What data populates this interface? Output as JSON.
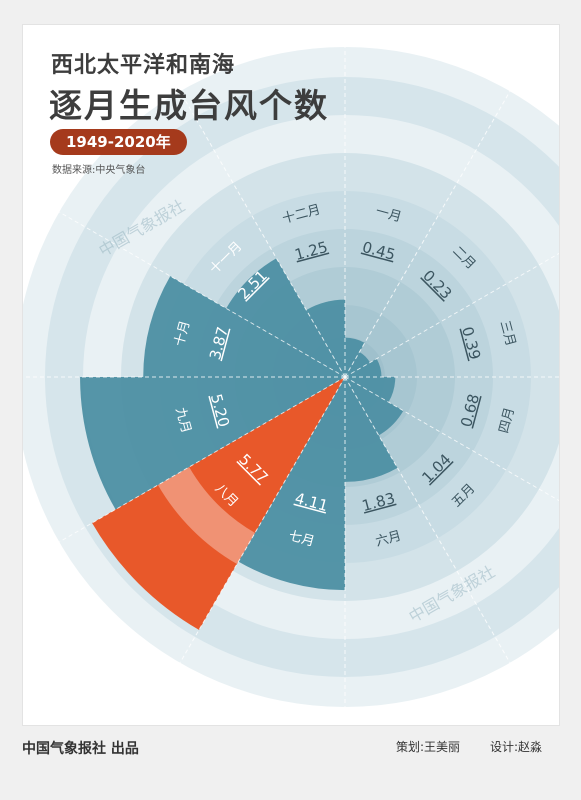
{
  "header": {
    "title_line1": "西北太平洋和南海",
    "title_line2": "逐月生成台风个数",
    "year_range": "1949-2020年",
    "source": "数据来源:中央气象台"
  },
  "footer": {
    "publisher": "中国气象报社 出品",
    "planner": "策划:王美丽",
    "designer": "设计:赵淼"
  },
  "watermark": "中国气象报社",
  "colors": {
    "bar": "#4d8fa3",
    "bar_highlight": "#e8582a",
    "rings_light": "#dde9ee",
    "rings_mid": "#c3d8e0",
    "title": "#3d3d3d",
    "badge": "#a53a1c"
  },
  "chart_data": {
    "type": "polar-bar",
    "title": "西北太平洋和南海逐月生成台风个数",
    "categories": [
      "一月",
      "二月",
      "三月",
      "四月",
      "五月",
      "六月",
      "七月",
      "八月",
      "九月",
      "十月",
      "十一月",
      "十二月"
    ],
    "values": [
      0.45,
      0.23,
      0.39,
      0.68,
      1.04,
      1.83,
      4.11,
      5.77,
      5.2,
      3.87,
      2.51,
      1.25
    ],
    "value_labels": [
      "0.45",
      "0.23",
      "0.39",
      "0.68",
      "1.04",
      "1.83",
      "4.11",
      "5.77",
      "5.20",
      "3.87",
      "2.51",
      "1.25"
    ],
    "highlight": "八月",
    "rlim": [
      0,
      5.77
    ],
    "grid": true
  }
}
